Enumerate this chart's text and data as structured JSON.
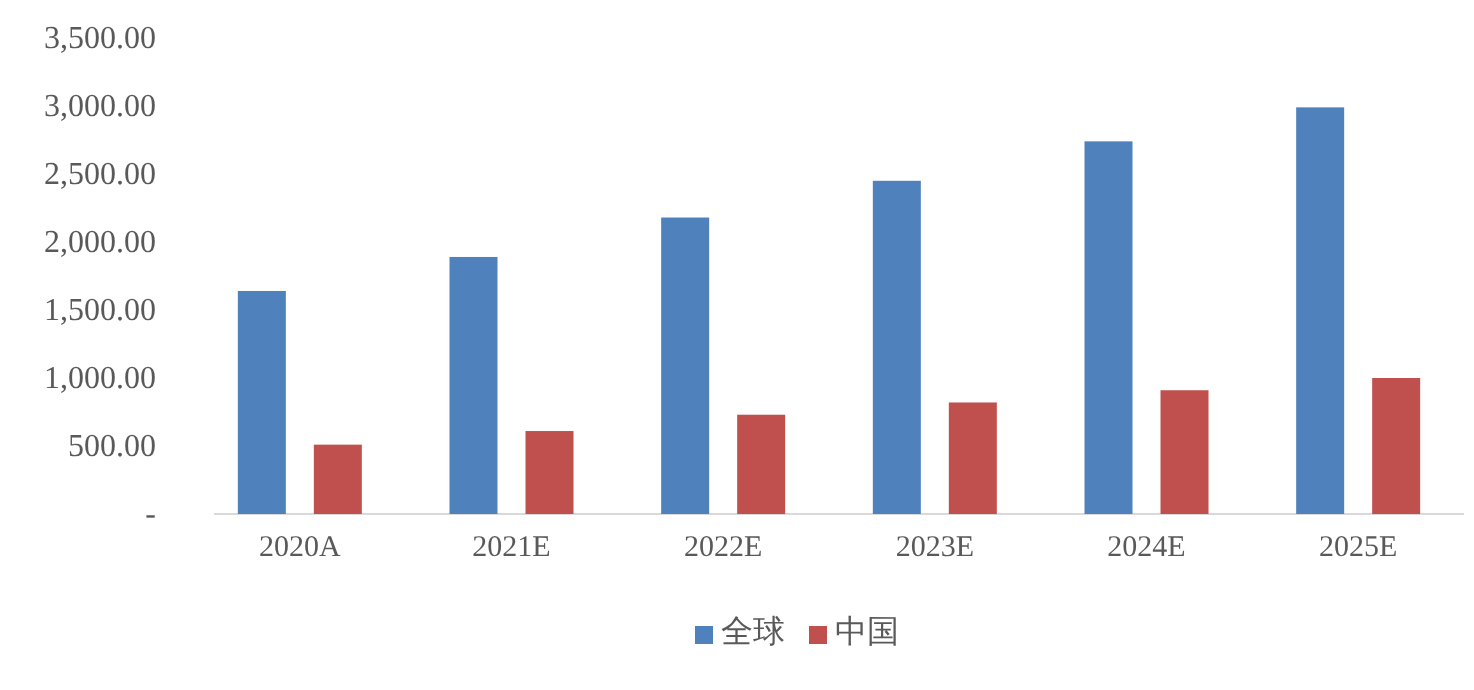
{
  "chart_data": {
    "type": "bar",
    "categories": [
      "2020A",
      "2021E",
      "2022E",
      "2023E",
      "2024E",
      "2025E"
    ],
    "series": [
      {
        "name": "全球",
        "color": "#4f81bd",
        "values": [
          1640,
          1890,
          2180,
          2450,
          2740,
          2990
        ]
      },
      {
        "name": "中国",
        "color": "#c0504d",
        "values": [
          510,
          610,
          730,
          820,
          910,
          1000
        ]
      }
    ],
    "ylim": [
      0,
      3500
    ],
    "yticks": [
      {
        "value": 0,
        "label": "-"
      },
      {
        "value": 500,
        "label": "500.00"
      },
      {
        "value": 1000,
        "label": "1,000.00"
      },
      {
        "value": 1500,
        "label": "1,500.00"
      },
      {
        "value": 2000,
        "label": "2,000.00"
      },
      {
        "value": 2500,
        "label": "2,500.00"
      },
      {
        "value": 3000,
        "label": "3,000.00"
      },
      {
        "value": 3500,
        "label": "3,500.00"
      }
    ],
    "grid": false,
    "legend": "bottom"
  }
}
